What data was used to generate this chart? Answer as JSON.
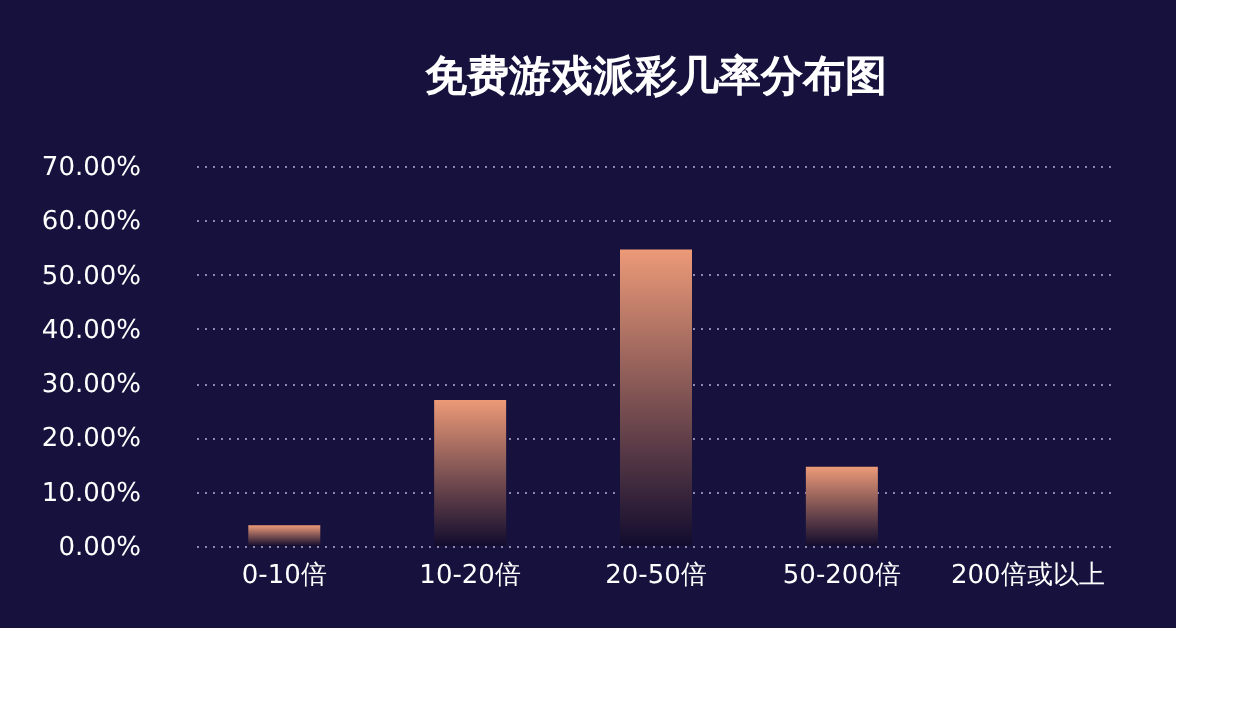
{
  "chart_data": {
    "type": "bar",
    "title": "免费游戏派彩几率分布图",
    "categories": [
      "0-10倍",
      "10-20倍",
      "20-50倍",
      "50-200倍",
      "200倍或以上"
    ],
    "values": [
      3.8,
      26.9,
      54.6,
      14.6,
      0
    ],
    "color": "#ec9a78",
    "ylim": [
      0,
      70
    ],
    "yticks": [
      {
        "value": 0,
        "label": "0.00%"
      },
      {
        "value": 10,
        "label": "10.00%"
      },
      {
        "value": 20,
        "label": "20.00%"
      },
      {
        "value": 30,
        "label": "30.00%"
      },
      {
        "value": 40,
        "label": "40.00%"
      },
      {
        "value": 50,
        "label": "50.00%"
      },
      {
        "value": 60,
        "label": "60.00%"
      },
      {
        "value": 70,
        "label": "70.00%"
      }
    ],
    "grid": "y"
  }
}
